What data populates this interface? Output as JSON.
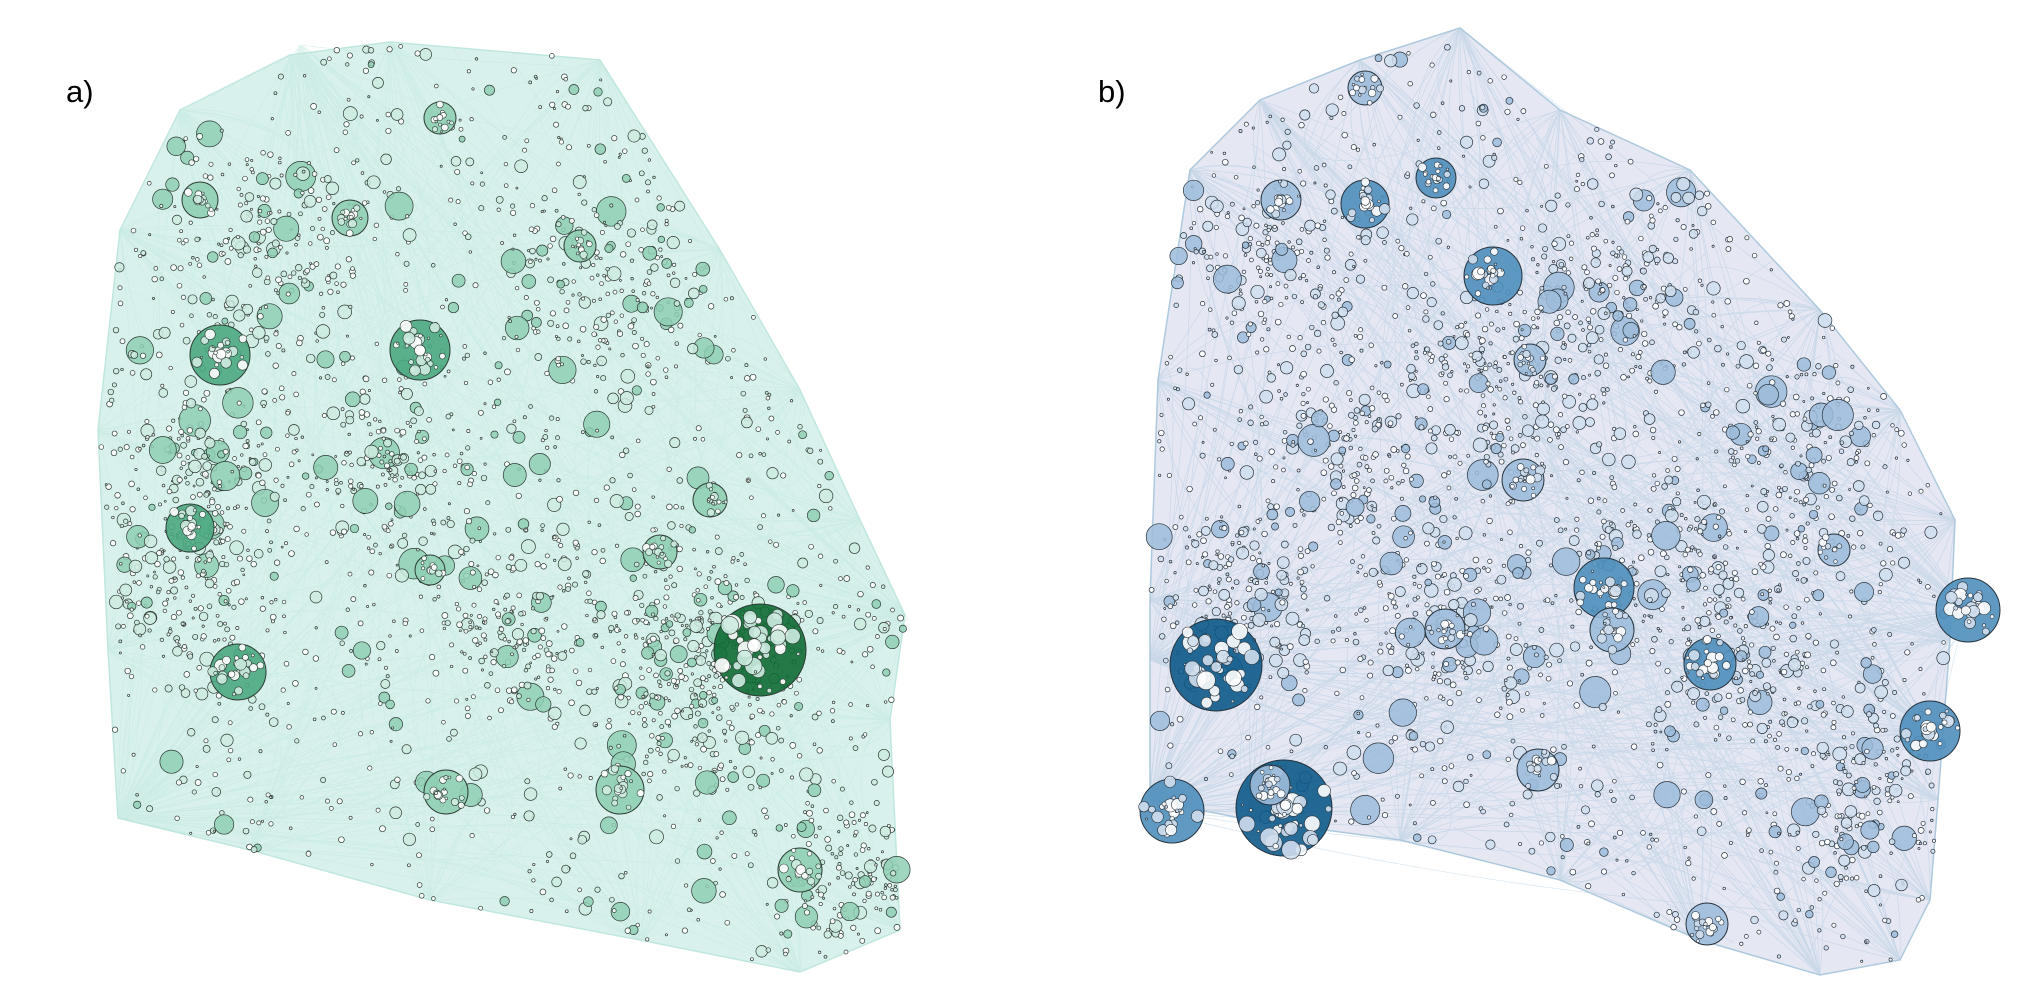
{
  "panels": [
    {
      "label": "a)",
      "palette": {
        "hull": "#d8f1ec",
        "edge": "#bde6dd",
        "node_light": "#cdebe0",
        "node_mid": "#8fcfb4",
        "node_strong": "#4ba97f",
        "node_dark": "#0f6b34",
        "outline": "#2d3b34"
      }
    },
    {
      "label": "b)",
      "palette": {
        "hull": "#e4e6f3",
        "edge": "#aac7dc",
        "node_light": "#d0deed",
        "node_mid": "#9dbcdb",
        "node_strong": "#4f8fbc",
        "node_dark": "#0e5a8a",
        "outline": "#27333d"
      }
    }
  ]
}
